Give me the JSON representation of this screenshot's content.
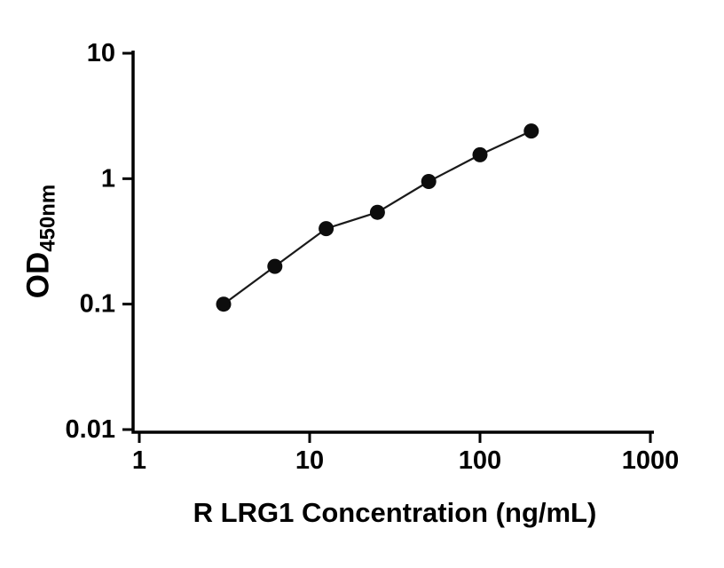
{
  "chart_data": {
    "type": "scatter",
    "title": "",
    "xlabel": "R LRG1 Concentration (ng/mL)",
    "ylabel_main": "OD",
    "ylabel_sub": "450nm",
    "x_scale": "log",
    "y_scale": "log",
    "xlim": [
      1,
      1000
    ],
    "ylim": [
      0.01,
      10
    ],
    "x_ticks": [
      {
        "value": 1,
        "label": "1"
      },
      {
        "value": 10,
        "label": "10"
      },
      {
        "value": 100,
        "label": "100"
      },
      {
        "value": 1000,
        "label": "1000"
      }
    ],
    "y_ticks": [
      {
        "value": 0.01,
        "label": "0.01"
      },
      {
        "value": 0.1,
        "label": "0.1"
      },
      {
        "value": 1,
        "label": "1"
      },
      {
        "value": 10,
        "label": "10"
      }
    ],
    "x": [
      3.125,
      6.25,
      12.5,
      25,
      50,
      100,
      200
    ],
    "y": [
      0.1,
      0.2,
      0.4,
      0.54,
      0.95,
      1.55,
      2.4
    ],
    "connect_line": true,
    "grid": false,
    "legend": false,
    "marker_color": "#0d0d0d",
    "line_color": "#1a1a1a",
    "axis_color": "#000000"
  },
  "canvas": {
    "background": "#ffffff"
  }
}
